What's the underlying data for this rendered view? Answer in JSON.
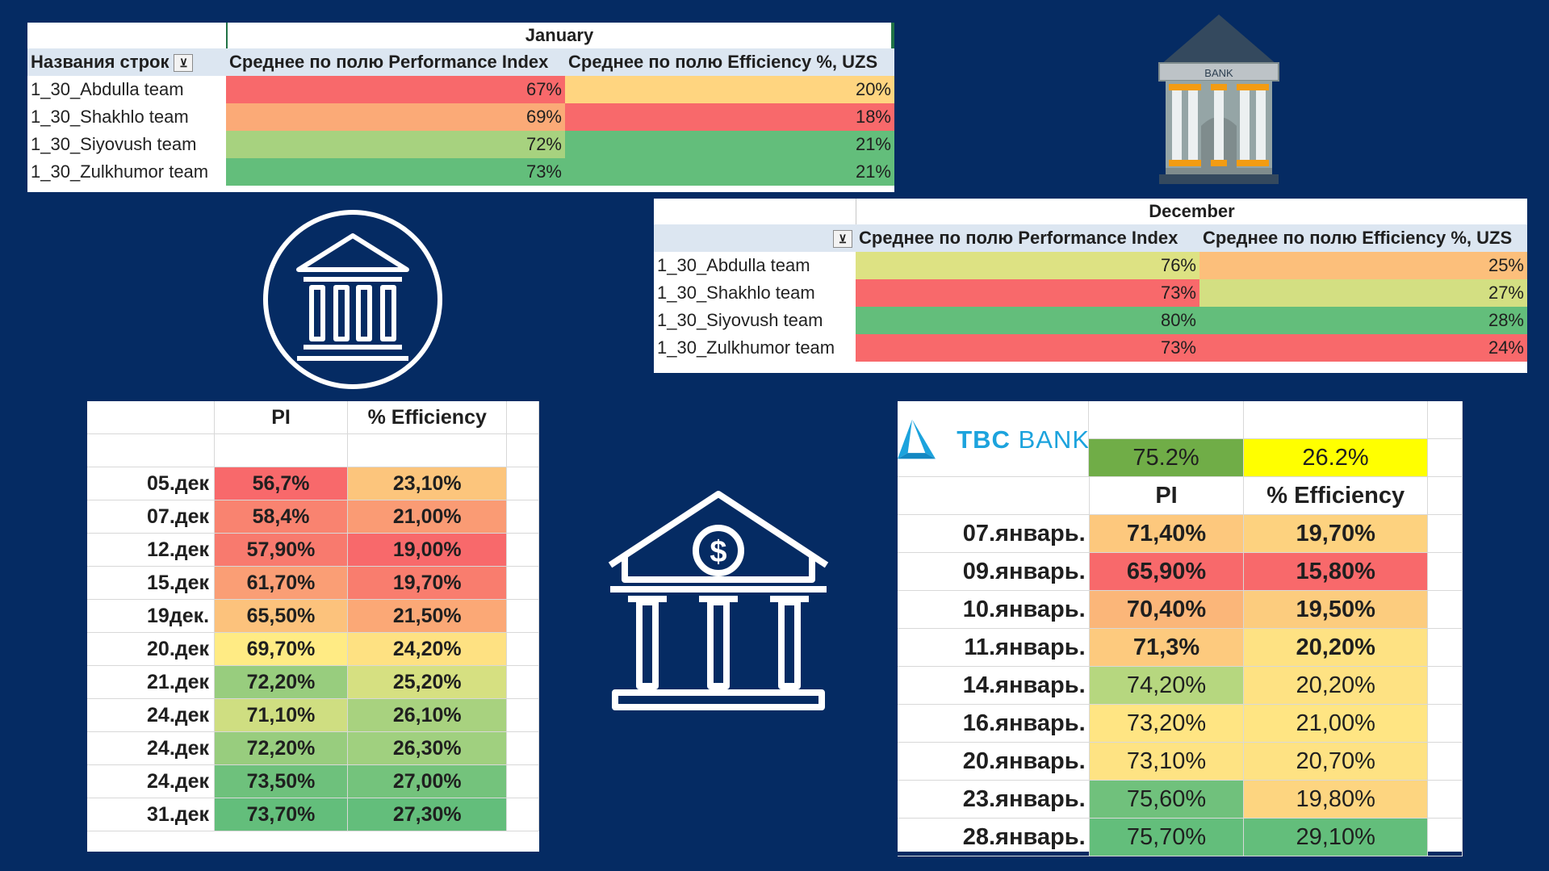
{
  "january_pivot": {
    "period": "January",
    "row_header": "Названия строк",
    "col_pi": "Среднее по полю Performance Index",
    "col_eff": "Среднее по полю Efficiency %, UZS",
    "rows": [
      {
        "team": "1_30_Abdulla team",
        "pi": "67%",
        "eff": "20%",
        "pi_color": "#f8696b",
        "eff_color": "#ffd580"
      },
      {
        "team": "1_30_Shakhlo team",
        "pi": "69%",
        "eff": "18%",
        "pi_color": "#fbaa77",
        "eff_color": "#f8696b"
      },
      {
        "team": "1_30_Siyovush team",
        "pi": "72%",
        "eff": "21%",
        "pi_color": "#a7d27f",
        "eff_color": "#63be7b"
      },
      {
        "team": "1_30_Zulkhumor team",
        "pi": "73%",
        "eff": "21%",
        "pi_color": "#63be7b",
        "eff_color": "#63be7b"
      }
    ]
  },
  "december_pivot": {
    "period": "December",
    "col_pi": "Среднее по полю Performance Index",
    "col_eff": "Среднее по полю Efficiency %, UZS",
    "rows": [
      {
        "team": "1_30_Abdulla team",
        "pi": "76%",
        "eff": "25%",
        "pi_color": "#dde283",
        "eff_color": "#fcbf7b"
      },
      {
        "team": "1_30_Shakhlo team",
        "pi": "73%",
        "eff": "27%",
        "pi_color": "#f8696b",
        "eff_color": "#d3df82"
      },
      {
        "team": "1_30_Siyovush team",
        "pi": "80%",
        "eff": "28%",
        "pi_color": "#63be7b",
        "eff_color": "#63be7b"
      },
      {
        "team": "1_30_Zulkhumor team",
        "pi": "73%",
        "eff": "24%",
        "pi_color": "#f8696b",
        "eff_color": "#f8696b"
      }
    ]
  },
  "december_daily": {
    "col_pi": "PI",
    "col_eff": "% Efficiency",
    "rows": [
      {
        "date": "05.дек",
        "pi": "56,7%",
        "eff": "23,10%",
        "pi_color": "#f8696b",
        "eff_color": "#fcc57c"
      },
      {
        "date": "07.дек",
        "pi": "58,4%",
        "eff": "21,00%",
        "pi_color": "#f98370",
        "eff_color": "#fa9b74"
      },
      {
        "date": "12.дек",
        "pi": "57,90%",
        "eff": "19,00%",
        "pi_color": "#f87a6e",
        "eff_color": "#f8696b"
      },
      {
        "date": "15.дек",
        "pi": "61,70%",
        "eff": "19,70%",
        "pi_color": "#fa9e75",
        "eff_color": "#f97d6e"
      },
      {
        "date": "19дек.",
        "pi": "65,50%",
        "eff": "21,50%",
        "pi_color": "#fcc27c",
        "eff_color": "#fba876"
      },
      {
        "date": "20.дек",
        "pi": "69,70%",
        "eff": "24,20%",
        "pi_color": "#ffeb84",
        "eff_color": "#fee182"
      },
      {
        "date": "21.дек",
        "pi": "72,20%",
        "eff": "25,20%",
        "pi_color": "#98cd7e",
        "eff_color": "#d6e081"
      },
      {
        "date": "24.дек",
        "pi": "71,10%",
        "eff": "26,10%",
        "pi_color": "#cfde81",
        "eff_color": "#a8d27f"
      },
      {
        "date": "24.дек",
        "pi": "72,20%",
        "eff": "26,30%",
        "pi_color": "#98cd7e",
        "eff_color": "#a0d07f"
      },
      {
        "date": "24.дек",
        "pi": "73,50%",
        "eff": "27,00%",
        "pi_color": "#6ec17c",
        "eff_color": "#74c37c"
      },
      {
        "date": "31.дек",
        "pi": "73,70%",
        "eff": "27,30%",
        "pi_color": "#63be7b",
        "eff_color": "#63be7b"
      }
    ]
  },
  "january_daily": {
    "logo_tbc": "TBC",
    "logo_bank": "BANK",
    "summary_pi": "75.2%",
    "summary_eff": "26.2%",
    "summary_pi_color": "#70ad47",
    "summary_eff_color": "#ffff00",
    "col_pi": "PI",
    "col_eff": "% Efficiency",
    "rows": [
      {
        "date": "07.январь.",
        "pi": "71,40%",
        "eff": "19,70%",
        "pi_color": "#fdc87d",
        "eff_color": "#fdd27f",
        "bold": true
      },
      {
        "date": "09.январь.",
        "pi": "65,90%",
        "eff": "15,80%",
        "pi_color": "#f8696b",
        "eff_color": "#f8696b",
        "bold": true
      },
      {
        "date": "10.январь.",
        "pi": "70,40%",
        "eff": "19,50%",
        "pi_color": "#fbb679",
        "eff_color": "#fccc7e",
        "bold": true
      },
      {
        "date": "11.январь.",
        "pi": "71,3%",
        "eff": "20,20%",
        "pi_color": "#fdca7e",
        "eff_color": "#fee283",
        "bold": true
      },
      {
        "date": "14.январь.",
        "pi": "74,20%",
        "eff": "20,20%",
        "pi_color": "#b6d77f",
        "eff_color": "#fee283",
        "bold": false
      },
      {
        "date": "16.январь.",
        "pi": "73,20%",
        "eff": "21,00%",
        "pi_color": "#ffe583",
        "eff_color": "#ffe583",
        "bold": false
      },
      {
        "date": "20.январь.",
        "pi": "73,10%",
        "eff": "20,70%",
        "pi_color": "#fee383",
        "eff_color": "#fee283",
        "bold": false
      },
      {
        "date": "23.январь.",
        "pi": "75,60%",
        "eff": "19,80%",
        "pi_color": "#70c17c",
        "eff_color": "#fdd580",
        "bold": false
      },
      {
        "date": "28.январь.",
        "pi": "75,70%",
        "eff": "29,10%",
        "pi_color": "#63be7b",
        "eff_color": "#63be7b",
        "bold": false
      }
    ]
  },
  "bank_sign": "BANK"
}
